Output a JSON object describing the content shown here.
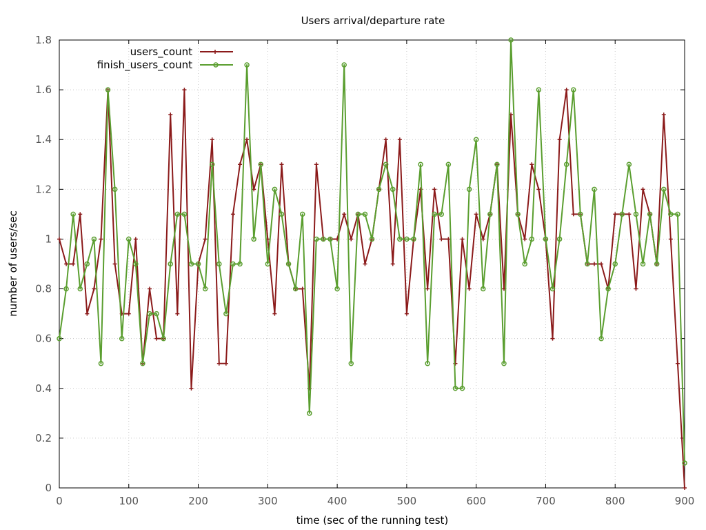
{
  "chart_data": {
    "type": "line",
    "title": "Users arrival/departure rate",
    "xlabel": "time (sec of the running test)",
    "ylabel": "number of users/sec",
    "xlim": [
      0,
      900
    ],
    "ylim": [
      0,
      1.8
    ],
    "xticks": [
      "0",
      "100",
      "200",
      "300",
      "400",
      "500",
      "600",
      "700",
      "800",
      "900"
    ],
    "yticks": [
      "0",
      "0.2",
      "0.4",
      "0.6",
      "0.8",
      "1",
      "1.2",
      "1.4",
      "1.6",
      "1.8"
    ],
    "grid": true,
    "legend_position": "top-left",
    "series": [
      {
        "name": "users_count",
        "color": "#8b1a1a",
        "marker": "plus",
        "x": [
          0,
          10,
          20,
          30,
          40,
          50,
          60,
          70,
          80,
          90,
          100,
          110,
          120,
          130,
          140,
          150,
          160,
          170,
          180,
          190,
          200,
          210,
          220,
          230,
          240,
          250,
          260,
          270,
          280,
          290,
          300,
          310,
          320,
          330,
          340,
          350,
          360,
          370,
          380,
          390,
          400,
          410,
          420,
          430,
          440,
          450,
          460,
          470,
          480,
          490,
          500,
          510,
          520,
          530,
          540,
          550,
          560,
          570,
          580,
          590,
          600,
          610,
          620,
          630,
          640,
          650,
          660,
          670,
          680,
          690,
          700,
          710,
          720,
          730,
          740,
          750,
          760,
          770,
          780,
          790,
          800,
          810,
          820,
          830,
          840,
          850,
          860,
          870,
          880,
          890,
          900
        ],
        "y": [
          1.0,
          0.9,
          0.9,
          1.1,
          0.7,
          0.8,
          1.0,
          1.6,
          0.9,
          0.7,
          0.7,
          1.0,
          0.5,
          0.8,
          0.6,
          0.6,
          1.5,
          0.7,
          1.6,
          0.4,
          0.9,
          1.0,
          1.4,
          0.5,
          0.5,
          1.1,
          1.3,
          1.4,
          1.2,
          1.3,
          1.0,
          0.7,
          1.3,
          0.9,
          0.8,
          0.8,
          0.4,
          1.3,
          1.0,
          1.0,
          1.0,
          1.1,
          1.0,
          1.1,
          0.9,
          1.0,
          1.2,
          1.4,
          0.9,
          1.4,
          0.7,
          1.0,
          1.2,
          0.8,
          1.2,
          1.0,
          1.0,
          0.5,
          1.0,
          0.8,
          1.1,
          1.0,
          1.1,
          1.3,
          0.8,
          1.5,
          1.1,
          1.0,
          1.3,
          1.2,
          1.0,
          0.6,
          1.4,
          1.6,
          1.1,
          1.1,
          0.9,
          0.9,
          0.9,
          0.8,
          1.1,
          1.1,
          1.1,
          0.8,
          1.2,
          1.1,
          0.9,
          1.5,
          1.0,
          0.5,
          0.0
        ]
      },
      {
        "name": "finish_users_count",
        "color": "#5a9e2f",
        "marker": "circle",
        "x": [
          0,
          10,
          20,
          30,
          40,
          50,
          60,
          70,
          80,
          90,
          100,
          110,
          120,
          130,
          140,
          150,
          160,
          170,
          180,
          190,
          200,
          210,
          220,
          230,
          240,
          250,
          260,
          270,
          280,
          290,
          300,
          310,
          320,
          330,
          340,
          350,
          360,
          370,
          380,
          390,
          400,
          410,
          420,
          430,
          440,
          450,
          460,
          470,
          480,
          490,
          500,
          510,
          520,
          530,
          540,
          550,
          560,
          570,
          580,
          590,
          600,
          610,
          620,
          630,
          640,
          650,
          660,
          670,
          680,
          690,
          700,
          710,
          720,
          730,
          740,
          750,
          760,
          770,
          780,
          790,
          800,
          810,
          820,
          830,
          840,
          850,
          860,
          870,
          880,
          890,
          900
        ],
        "y": [
          0.6,
          0.8,
          1.1,
          0.8,
          0.9,
          1.0,
          0.5,
          1.6,
          1.2,
          0.6,
          1.0,
          0.9,
          0.5,
          0.7,
          0.7,
          0.6,
          0.9,
          1.1,
          1.1,
          0.9,
          0.9,
          0.8,
          1.3,
          0.9,
          0.7,
          0.9,
          0.9,
          1.7,
          1.0,
          1.3,
          0.9,
          1.2,
          1.1,
          0.9,
          0.8,
          1.1,
          0.3,
          1.0,
          1.0,
          1.0,
          0.8,
          1.7,
          0.5,
          1.1,
          1.1,
          1.0,
          1.2,
          1.3,
          1.2,
          1.0,
          1.0,
          1.0,
          1.3,
          0.5,
          1.1,
          1.1,
          1.3,
          0.4,
          0.4,
          1.2,
          1.4,
          0.8,
          1.1,
          1.3,
          0.5,
          1.8,
          1.1,
          0.9,
          1.0,
          1.6,
          1.0,
          0.8,
          1.0,
          1.3,
          1.6,
          1.1,
          0.9,
          1.2,
          0.6,
          0.8,
          0.9,
          1.1,
          1.3,
          1.1,
          0.9,
          1.1,
          0.9,
          1.2,
          1.1,
          1.1,
          0.1
        ]
      }
    ]
  }
}
